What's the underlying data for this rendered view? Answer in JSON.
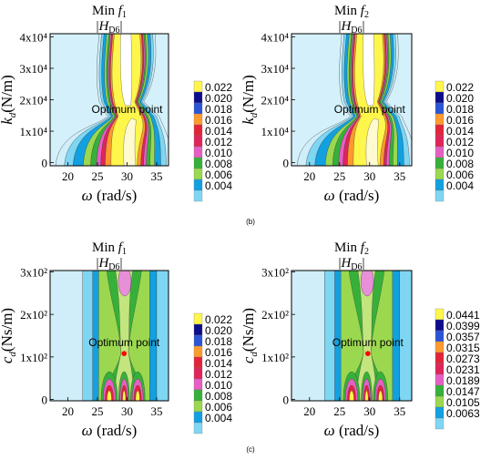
{
  "subfig_labels": [
    "(b)",
    "(c)"
  ],
  "chart_data": [
    {
      "type": "heatmap",
      "title": "Min f1",
      "title_html": {
        "prefix": "Min ",
        "var": "f",
        "sub": "1"
      },
      "subtitle_html": {
        "var": "H",
        "sub": "D6"
      },
      "xlabel": "ω (rad/s)",
      "ylabel": "kd(N/m)",
      "ylabel_html": {
        "var": "k",
        "sub": "d",
        "unit": "(N/m)"
      },
      "x_ticks": [
        20,
        25,
        30,
        35
      ],
      "y_ticks": [
        "0",
        "1x10⁴",
        "2x10⁴",
        "3x10⁴",
        "4x10⁴"
      ],
      "y_tick_values": [
        0,
        10000,
        20000,
        30000,
        40000
      ],
      "xlim": [
        17,
        37
      ],
      "ylim": [
        -1000,
        41000
      ],
      "annotation": {
        "text": "Optimum point",
        "x": 30,
        "y": 17000
      },
      "legend": [
        "0.022",
        "0.020",
        "0.018",
        "0.016",
        "0.014",
        "0.012",
        "0.010",
        "0.008",
        "0.006",
        "0.004"
      ],
      "legend_colors": [
        "#fff64c",
        "#0c0c8c",
        "#2b54d6",
        "#ff9a2e",
        "#e2243a",
        "#e0245a",
        "#e65fc4",
        "#37b03a",
        "#9bd84f",
        "#12a0e0",
        "#7fd6f3",
        "#cfeef9"
      ],
      "contour_pattern": "stiffness"
    },
    {
      "type": "heatmap",
      "title": "Min f2",
      "title_html": {
        "prefix": "Min ",
        "var": "f",
        "sub": "2"
      },
      "subtitle_html": {
        "var": "H",
        "sub": "D6"
      },
      "xlabel": "ω (rad/s)",
      "ylabel": "kd(N/m)",
      "ylabel_html": {
        "var": "k",
        "sub": "d",
        "unit": "(N/m)"
      },
      "x_ticks": [
        20,
        25,
        30,
        35
      ],
      "y_ticks": [
        "0",
        "1x10⁴",
        "2x10⁴",
        "3x10⁴",
        "4x10⁴"
      ],
      "y_tick_values": [
        0,
        10000,
        20000,
        30000,
        40000
      ],
      "xlim": [
        17,
        37
      ],
      "ylim": [
        -1000,
        41000
      ],
      "annotation": {
        "text": "Optimum point",
        "x": 30,
        "y": 17000
      },
      "legend": [
        "0.022",
        "0.020",
        "0.018",
        "0.016",
        "0.014",
        "0.012",
        "0.010",
        "0.008",
        "0.006",
        "0.004"
      ],
      "legend_colors": [
        "#fff64c",
        "#0c0c8c",
        "#2b54d6",
        "#ff9a2e",
        "#e2243a",
        "#e0245a",
        "#e65fc4",
        "#37b03a",
        "#9bd84f",
        "#12a0e0",
        "#7fd6f3",
        "#cfeef9"
      ],
      "contour_pattern": "stiffness"
    },
    {
      "type": "heatmap",
      "title": "Min f1",
      "title_html": {
        "prefix": "Min ",
        "var": "f",
        "sub": "1"
      },
      "subtitle_html": {
        "var": "H",
        "sub": "D6"
      },
      "xlabel": "ω (rad/s)",
      "ylabel": "cd(Ns/m)",
      "ylabel_html": {
        "var": "c",
        "sub": "d",
        "unit": "(Ns/m)"
      },
      "x_ticks": [
        20,
        25,
        30,
        35
      ],
      "y_ticks": [
        "0",
        "1x10²",
        "2x10²",
        "3x10²"
      ],
      "y_tick_values": [
        0,
        100,
        200,
        300
      ],
      "xlim": [
        17,
        37
      ],
      "ylim": [
        -3,
        303
      ],
      "annotation": {
        "text": "Optimum point",
        "x": 29.5,
        "y": 108
      },
      "optimum_marker": {
        "x": 29.5,
        "y": 108,
        "color": "#ff0000"
      },
      "legend": [
        "0.022",
        "0.020",
        "0.018",
        "0.016",
        "0.014",
        "0.012",
        "0.010",
        "0.008",
        "0.006",
        "0.004"
      ],
      "legend_colors": [
        "#fff64c",
        "#0c0c8c",
        "#2b54d6",
        "#ff9a2e",
        "#e2243a",
        "#e0245a",
        "#e65fc4",
        "#37b03a",
        "#9bd84f",
        "#12a0e0",
        "#7fd6f3",
        "#cfeef9"
      ],
      "contour_pattern": "damping"
    },
    {
      "type": "heatmap",
      "title": "Min f2",
      "title_html": {
        "prefix": "Min ",
        "var": "f",
        "sub": "2"
      },
      "subtitle_html": {
        "var": "H",
        "sub": "D6"
      },
      "xlabel": "ω (rad/s)",
      "ylabel": "cd(Ns/m)",
      "ylabel_html": {
        "var": "c",
        "sub": "d",
        "unit": "(Ns/m)"
      },
      "x_ticks": [
        20,
        25,
        30,
        35
      ],
      "y_ticks": [
        "0",
        "1x10²",
        "2x10²",
        "3x10²"
      ],
      "y_tick_values": [
        0,
        100,
        200,
        300
      ],
      "xlim": [
        17,
        37
      ],
      "ylim": [
        -3,
        303
      ],
      "annotation": {
        "text": "Optimum point",
        "x": 29.7,
        "y": 108
      },
      "optimum_marker": {
        "x": 29.7,
        "y": 108,
        "color": "#ff0000"
      },
      "legend": [
        "0.0441",
        "0.0399",
        "0.0357",
        "0.0315",
        "0.0273",
        "0.0231",
        "0.0189",
        "0.0147",
        "0.0105",
        "0.0063"
      ],
      "legend_colors": [
        "#fff64c",
        "#0c0c8c",
        "#2b54d6",
        "#ff9a2e",
        "#e2243a",
        "#e0245a",
        "#e65fc4",
        "#37b03a",
        "#9bd84f",
        "#12a0e0",
        "#7fd6f3",
        "#cfeef9"
      ],
      "contour_pattern": "damping"
    }
  ]
}
